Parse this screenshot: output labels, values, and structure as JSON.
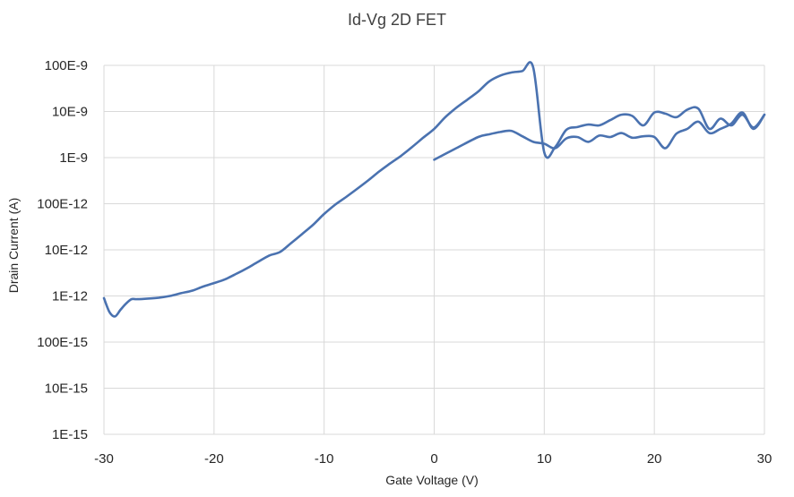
{
  "chart_data": {
    "type": "line",
    "title": "Id-Vg 2D FET",
    "xlabel": "Gate Voltage (V)",
    "ylabel": "Drain Current (A)",
    "xlim": [
      -30,
      30
    ],
    "ylim": [
      1e-15,
      1e-07
    ],
    "yscale": "log",
    "grid": true,
    "x_ticks": [
      -30,
      -20,
      -10,
      0,
      10,
      20,
      30
    ],
    "x_tick_labels": [
      "-30",
      "-20",
      "-10",
      "0",
      "10",
      "20",
      "30"
    ],
    "y_ticks": [
      1e-15,
      1e-14,
      1e-13,
      1e-12,
      1e-11,
      1e-10,
      1e-09,
      1e-08,
      1e-07
    ],
    "y_tick_labels": [
      "1E-15",
      "10E-15",
      "100E-15",
      "1E-12",
      "10E-12",
      "100E-12",
      "1E-9",
      "10E-9",
      "100E-9"
    ],
    "colors": {
      "series": "#4a72b0",
      "grid": "#d9d9d9",
      "text": "#262626"
    },
    "series": [
      {
        "x": [
          0,
          2,
          4,
          5,
          6,
          7,
          8,
          9,
          10,
          11,
          12,
          13,
          14,
          15,
          16,
          17,
          18,
          19,
          20,
          21,
          22,
          23,
          24,
          25,
          26,
          27,
          28,
          29,
          30
        ],
        "y": [
          9e-10,
          1.6e-09,
          2.8e-09,
          3.2e-09,
          3.6e-09,
          3.8e-09,
          2.9e-09,
          2.2e-09,
          2e-09,
          1.6e-09,
          2.6e-09,
          2.8e-09,
          2.2e-09,
          3e-09,
          2.8e-09,
          3.4e-09,
          2.7e-09,
          2.9e-09,
          2.8e-09,
          1.6e-09,
          3.3e-09,
          4.2e-09,
          6e-09,
          3.4e-09,
          4.2e-09,
          5.5e-09,
          9.5e-09,
          4.2e-09,
          8.5e-09
        ]
      },
      {
        "x": [
          -30,
          -29.5,
          -29,
          -28.5,
          -28,
          -27.5,
          -27,
          -26,
          -25,
          -24,
          -23,
          -22,
          -21,
          -20,
          -19,
          -18,
          -17,
          -16,
          -15,
          -14,
          -13,
          -12,
          -11,
          -10,
          -9,
          -8,
          -7,
          -6,
          -5,
          -4,
          -3,
          -2,
          -1,
          0,
          1,
          2,
          3,
          4,
          5,
          6,
          7,
          8,
          9,
          10,
          11,
          12,
          13,
          14,
          15,
          16,
          17,
          18,
          19,
          20,
          21,
          22,
          23,
          24,
          25,
          26,
          27,
          28,
          29,
          30
        ],
        "y": [
          9e-13,
          4.5e-13,
          3.6e-13,
          5e-13,
          6.8e-13,
          8.5e-13,
          8.5e-13,
          8.8e-13,
          9.2e-13,
          1e-12,
          1.15e-12,
          1.3e-12,
          1.6e-12,
          1.9e-12,
          2.3e-12,
          3e-12,
          4e-12,
          5.5e-12,
          7.5e-12,
          9e-12,
          1.4e-11,
          2.2e-11,
          3.5e-11,
          6e-11,
          9.5e-11,
          1.4e-10,
          2.1e-10,
          3.2e-10,
          5e-10,
          7.5e-10,
          1.1e-09,
          1.7e-09,
          2.7e-09,
          4.2e-09,
          7.5e-09,
          1.2e-08,
          1.8e-08,
          2.7e-08,
          4.5e-08,
          6e-08,
          7e-08,
          7.5e-08,
          9e-08,
          1.3e-09,
          1.7e-09,
          4e-09,
          4.6e-09,
          5.2e-09,
          5e-09,
          6.5e-09,
          8.5e-09,
          8e-09,
          5e-09,
          9.5e-09,
          9e-09,
          7.5e-09,
          1.1e-08,
          1.15e-08,
          4.2e-09,
          7e-09,
          5e-09,
          8.5e-09,
          4.5e-09,
          8.5e-09
        ]
      }
    ]
  }
}
